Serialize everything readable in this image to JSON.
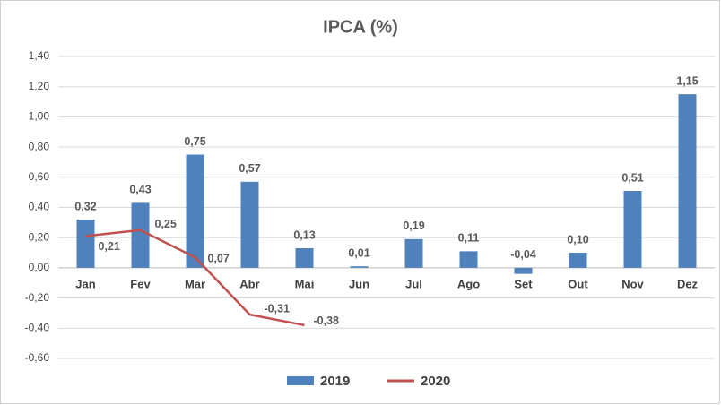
{
  "chart_data": {
    "type": "bar-line",
    "title": "IPCA (%)",
    "categories": [
      "Jan",
      "Fev",
      "Mar",
      "Abr",
      "Mai",
      "Jun",
      "Jul",
      "Ago",
      "Set",
      "Out",
      "Nov",
      "Dez"
    ],
    "series": [
      {
        "name": "2019",
        "type": "bar",
        "color": "#4f81bd",
        "label_color": "#1f3f6e",
        "negative_label_color": "#e02020",
        "values": [
          0.32,
          0.43,
          0.75,
          0.57,
          0.13,
          0.01,
          0.19,
          0.11,
          -0.04,
          0.1,
          0.51,
          1.15
        ],
        "value_labels": [
          "0,32",
          "0,43",
          "0,75",
          "0,57",
          "0,13",
          "0,01",
          "0,19",
          "0,11",
          "-0,04",
          "0,10",
          "0,51",
          "1,15"
        ]
      },
      {
        "name": "2020",
        "type": "line",
        "color": "#c0504d",
        "label_color": "#c0504d",
        "values": [
          0.21,
          0.25,
          0.07,
          -0.31,
          -0.38,
          null,
          null,
          null,
          null,
          null,
          null,
          null
        ],
        "value_labels": [
          "0,21",
          "0,25",
          "0,07",
          "-0,31",
          "-0,38",
          null,
          null,
          null,
          null,
          null,
          null,
          null
        ]
      }
    ],
    "ylim": [
      -0.6,
      1.4
    ],
    "yticks": [
      {
        "value": -0.6,
        "label": "-0,60"
      },
      {
        "value": -0.4,
        "label": "-0,40"
      },
      {
        "value": -0.2,
        "label": "-0,20"
      },
      {
        "value": 0,
        "label": "0,00"
      },
      {
        "value": 0.2,
        "label": "0,20"
      },
      {
        "value": 0.4,
        "label": "0,40"
      },
      {
        "value": 0.6,
        "label": "0,60"
      },
      {
        "value": 0.8,
        "label": "0,80"
      },
      {
        "value": 1.0,
        "label": "1,00"
      },
      {
        "value": 1.2,
        "label": "1,20"
      },
      {
        "value": 1.4,
        "label": "1,40"
      }
    ],
    "grid": true,
    "legend": "bottom"
  }
}
